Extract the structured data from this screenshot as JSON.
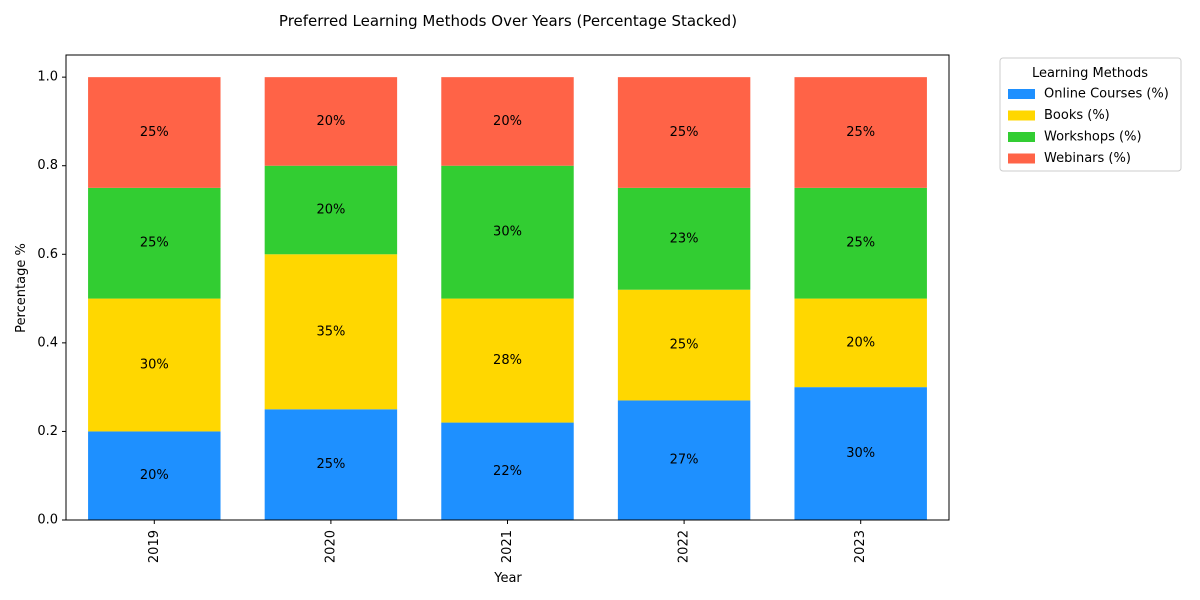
{
  "chart_data": {
    "type": "bar",
    "stacked": true,
    "title": "Preferred Learning Methods Over Years (Percentage Stacked)",
    "xlabel": "Year",
    "ylabel": "Percentage %",
    "categories": [
      "2019",
      "2020",
      "2021",
      "2022",
      "2023"
    ],
    "ylim": [
      0,
      1.05
    ],
    "yticks": [
      "0.0",
      "0.2",
      "0.4",
      "0.6",
      "0.8",
      "1.0"
    ],
    "grid": false,
    "legend": {
      "title": "Learning Methods",
      "placement": "outside-top-right"
    },
    "series": [
      {
        "name": "Online Courses (%)",
        "color": "#1E90FF",
        "values": [
          0.2,
          0.25,
          0.22,
          0.27,
          0.3
        ],
        "labels": [
          "20%",
          "25%",
          "22%",
          "27%",
          "30%"
        ]
      },
      {
        "name": "Books (%)",
        "color": "#FFD700",
        "values": [
          0.3,
          0.35,
          0.28,
          0.25,
          0.2
        ],
        "labels": [
          "30%",
          "35%",
          "28%",
          "25%",
          "20%"
        ]
      },
      {
        "name": "Workshops (%)",
        "color": "#32CD32",
        "values": [
          0.25,
          0.2,
          0.3,
          0.23,
          0.25
        ],
        "labels": [
          "25%",
          "20%",
          "30%",
          "23%",
          "25%"
        ]
      },
      {
        "name": "Webinars (%)",
        "color": "#FF6347",
        "values": [
          0.25,
          0.2,
          0.2,
          0.25,
          0.25
        ],
        "labels": [
          "25%",
          "20%",
          "20%",
          "25%",
          "25%"
        ]
      }
    ]
  }
}
